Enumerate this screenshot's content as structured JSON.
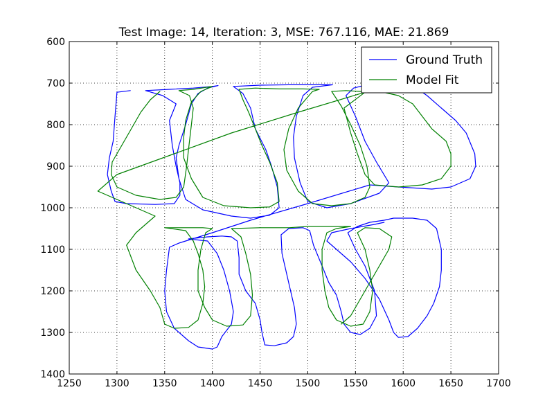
{
  "chart_data": {
    "type": "line",
    "title": "Test Image: 14, Iteration: 3, MSE: 767.116, MAE: 21.869",
    "xlabel": "",
    "ylabel": "",
    "xlim": [
      1250,
      1700
    ],
    "ylim": [
      600,
      1400
    ],
    "y_inverted": true,
    "grid": true,
    "legend_position": "top-right",
    "x_ticks": [
      1250,
      1300,
      1350,
      1400,
      1450,
      1500,
      1550,
      1600,
      1650,
      1700
    ],
    "y_ticks": [
      600,
      700,
      800,
      900,
      1000,
      1100,
      1200,
      1300,
      1400
    ],
    "series": [
      {
        "name": "Ground Truth",
        "color": "#0000ff",
        "points": [
          [
            1314,
            718
          ],
          [
            1300,
            722
          ],
          [
            1298,
            780
          ],
          [
            1296,
            840
          ],
          [
            1292,
            880
          ],
          [
            1290,
            920
          ],
          [
            1294,
            960
          ],
          [
            1298,
            985
          ],
          [
            1310,
            990
          ],
          [
            1340,
            992
          ],
          [
            1360,
            990
          ],
          [
            1366,
            970
          ],
          [
            1366,
            940
          ],
          [
            1362,
            900
          ],
          [
            1358,
            850
          ],
          [
            1355,
            790
          ],
          [
            1362,
            750
          ],
          [
            1348,
            730
          ],
          [
            1330,
            718
          ],
          [
            1355,
            715
          ],
          [
            1380,
            712
          ],
          [
            1400,
            708
          ],
          [
            1406,
            706
          ],
          [
            1395,
            712
          ],
          [
            1385,
            725
          ],
          [
            1378,
            750
          ],
          [
            1372,
            800
          ],
          [
            1365,
            850
          ],
          [
            1362,
            880
          ],
          [
            1365,
            930
          ],
          [
            1372,
            980
          ],
          [
            1390,
            1005
          ],
          [
            1420,
            1020
          ],
          [
            1440,
            1025
          ],
          [
            1460,
            1018
          ],
          [
            1470,
            1000
          ],
          [
            1468,
            950
          ],
          [
            1462,
            900
          ],
          [
            1456,
            860
          ],
          [
            1445,
            810
          ],
          [
            1440,
            760
          ],
          [
            1432,
            725
          ],
          [
            1422,
            708
          ],
          [
            1450,
            705
          ],
          [
            1480,
            704
          ],
          [
            1500,
            704
          ],
          [
            1516,
            704
          ],
          [
            1526,
            704
          ],
          [
            1505,
            710
          ],
          [
            1495,
            730
          ],
          [
            1488,
            780
          ],
          [
            1485,
            830
          ],
          [
            1486,
            880
          ],
          [
            1492,
            940
          ],
          [
            1500,
            985
          ],
          [
            1520,
            1000
          ],
          [
            1545,
            990
          ],
          [
            1575,
            965
          ],
          [
            1585,
            940
          ],
          [
            1572,
            890
          ],
          [
            1560,
            840
          ],
          [
            1550,
            780
          ],
          [
            1540,
            730
          ],
          [
            1548,
            712
          ],
          [
            1560,
            705
          ],
          [
            1578,
            702
          ],
          [
            1590,
            700
          ],
          [
            1605,
            698
          ],
          [
            1625,
            730
          ],
          [
            1640,
            760
          ],
          [
            1655,
            790
          ],
          [
            1666,
            820
          ],
          [
            1675,
            870
          ],
          [
            1676,
            900
          ],
          [
            1670,
            930
          ],
          [
            1650,
            950
          ],
          [
            1630,
            955
          ],
          [
            1595,
            950
          ],
          [
            1565,
            945
          ],
          [
            1500,
            990
          ],
          [
            1440,
            1030
          ],
          [
            1400,
            1060
          ],
          [
            1365,
            1085
          ],
          [
            1355,
            1095
          ],
          [
            1352,
            1150
          ],
          [
            1350,
            1200
          ],
          [
            1352,
            1250
          ],
          [
            1360,
            1290
          ],
          [
            1375,
            1320
          ],
          [
            1385,
            1335
          ],
          [
            1400,
            1340
          ],
          [
            1405,
            1335
          ],
          [
            1410,
            1310
          ],
          [
            1420,
            1280
          ],
          [
            1422,
            1250
          ],
          [
            1418,
            1200
          ],
          [
            1412,
            1150
          ],
          [
            1405,
            1110
          ],
          [
            1395,
            1080
          ],
          [
            1375,
            1075
          ],
          [
            1395,
            1070
          ],
          [
            1410,
            1068
          ],
          [
            1420,
            1070
          ],
          [
            1426,
            1080
          ],
          [
            1428,
            1120
          ],
          [
            1428,
            1160
          ],
          [
            1435,
            1200
          ],
          [
            1445,
            1230
          ],
          [
            1450,
            1270
          ],
          [
            1452,
            1300
          ],
          [
            1455,
            1330
          ],
          [
            1465,
            1332
          ],
          [
            1478,
            1325
          ],
          [
            1485,
            1310
          ],
          [
            1488,
            1280
          ],
          [
            1486,
            1240
          ],
          [
            1482,
            1200
          ],
          [
            1478,
            1160
          ],
          [
            1473,
            1110
          ],
          [
            1472,
            1065
          ],
          [
            1480,
            1050
          ],
          [
            1495,
            1048
          ],
          [
            1502,
            1055
          ],
          [
            1506,
            1090
          ],
          [
            1515,
            1140
          ],
          [
            1522,
            1180
          ],
          [
            1530,
            1210
          ],
          [
            1535,
            1250
          ],
          [
            1538,
            1280
          ],
          [
            1545,
            1300
          ],
          [
            1555,
            1305
          ],
          [
            1565,
            1290
          ],
          [
            1572,
            1260
          ],
          [
            1570,
            1200
          ],
          [
            1560,
            1140
          ],
          [
            1550,
            1100
          ],
          [
            1542,
            1060
          ],
          [
            1552,
            1045
          ],
          [
            1565,
            1035
          ],
          [
            1580,
            1030
          ],
          [
            1590,
            1025
          ],
          [
            1610,
            1025
          ],
          [
            1625,
            1030
          ],
          [
            1635,
            1050
          ],
          [
            1640,
            1100
          ],
          [
            1640,
            1150
          ],
          [
            1638,
            1190
          ],
          [
            1632,
            1230
          ],
          [
            1625,
            1260
          ],
          [
            1615,
            1290
          ],
          [
            1605,
            1310
          ],
          [
            1595,
            1312
          ],
          [
            1590,
            1300
          ],
          [
            1585,
            1270
          ],
          [
            1575,
            1220
          ],
          [
            1560,
            1170
          ],
          [
            1545,
            1130
          ],
          [
            1530,
            1100
          ],
          [
            1520,
            1080
          ],
          [
            1525,
            1060
          ],
          [
            1545,
            1050
          ],
          [
            1570,
            1040
          ],
          [
            1580,
            1035
          ]
        ]
      },
      {
        "name": "Model Fit",
        "color": "#008000",
        "points": [
          [
            1345,
            720
          ],
          [
            1335,
            740
          ],
          [
            1325,
            770
          ],
          [
            1315,
            810
          ],
          [
            1305,
            850
          ],
          [
            1295,
            890
          ],
          [
            1294,
            920
          ],
          [
            1300,
            950
          ],
          [
            1320,
            970
          ],
          [
            1345,
            980
          ],
          [
            1362,
            975
          ],
          [
            1370,
            950
          ],
          [
            1373,
            900
          ],
          [
            1375,
            860
          ],
          [
            1378,
            800
          ],
          [
            1380,
            760
          ],
          [
            1376,
            730
          ],
          [
            1365,
            718
          ],
          [
            1380,
            715
          ],
          [
            1400,
            708
          ],
          [
            1388,
            720
          ],
          [
            1378,
            745
          ],
          [
            1372,
            790
          ],
          [
            1370,
            830
          ],
          [
            1370,
            880
          ],
          [
            1378,
            930
          ],
          [
            1390,
            975
          ],
          [
            1412,
            995
          ],
          [
            1440,
            1000
          ],
          [
            1460,
            998
          ],
          [
            1470,
            985
          ],
          [
            1468,
            940
          ],
          [
            1460,
            890
          ],
          [
            1452,
            850
          ],
          [
            1445,
            810
          ],
          [
            1438,
            770
          ],
          [
            1432,
            740
          ],
          [
            1428,
            715
          ],
          [
            1445,
            712
          ],
          [
            1470,
            714
          ],
          [
            1495,
            714
          ],
          [
            1512,
            715
          ],
          [
            1505,
            720
          ],
          [
            1490,
            760
          ],
          [
            1480,
            810
          ],
          [
            1475,
            860
          ],
          [
            1478,
            910
          ],
          [
            1490,
            960
          ],
          [
            1505,
            990
          ],
          [
            1525,
            995
          ],
          [
            1545,
            990
          ],
          [
            1560,
            975
          ],
          [
            1565,
            950
          ],
          [
            1562,
            900
          ],
          [
            1555,
            850
          ],
          [
            1545,
            800
          ],
          [
            1535,
            755
          ],
          [
            1525,
            720
          ],
          [
            1540,
            718
          ],
          [
            1555,
            720
          ],
          [
            1575,
            720
          ],
          [
            1595,
            730
          ],
          [
            1610,
            750
          ],
          [
            1620,
            780
          ],
          [
            1630,
            810
          ],
          [
            1645,
            840
          ],
          [
            1650,
            870
          ],
          [
            1650,
            900
          ],
          [
            1640,
            930
          ],
          [
            1620,
            945
          ],
          [
            1595,
            950
          ],
          [
            1570,
            945
          ],
          [
            1560,
            920
          ],
          [
            1552,
            870
          ],
          [
            1545,
            820
          ],
          [
            1538,
            760
          ],
          [
            1560,
            722
          ],
          [
            1490,
            770
          ],
          [
            1420,
            820
          ],
          [
            1360,
            870
          ],
          [
            1300,
            920
          ],
          [
            1280,
            960
          ],
          [
            1310,
            990
          ],
          [
            1340,
            1020
          ],
          [
            1320,
            1060
          ],
          [
            1310,
            1090
          ],
          [
            1320,
            1150
          ],
          [
            1335,
            1200
          ],
          [
            1345,
            1240
          ],
          [
            1350,
            1280
          ],
          [
            1360,
            1290
          ],
          [
            1375,
            1288
          ],
          [
            1385,
            1270
          ],
          [
            1390,
            1230
          ],
          [
            1392,
            1190
          ],
          [
            1390,
            1150
          ],
          [
            1385,
            1110
          ],
          [
            1380,
            1080
          ],
          [
            1372,
            1055
          ],
          [
            1350,
            1048
          ],
          [
            1390,
            1048
          ],
          [
            1400,
            1050
          ],
          [
            1393,
            1060
          ],
          [
            1388,
            1100
          ],
          [
            1385,
            1150
          ],
          [
            1385,
            1200
          ],
          [
            1392,
            1240
          ],
          [
            1400,
            1270
          ],
          [
            1415,
            1285
          ],
          [
            1432,
            1282
          ],
          [
            1440,
            1260
          ],
          [
            1442,
            1210
          ],
          [
            1440,
            1160
          ],
          [
            1435,
            1110
          ],
          [
            1430,
            1070
          ],
          [
            1420,
            1050
          ],
          [
            1450,
            1048
          ],
          [
            1480,
            1048
          ],
          [
            1500,
            1045
          ],
          [
            1520,
            1045
          ],
          [
            1545,
            1045
          ],
          [
            1530,
            1050
          ],
          [
            1520,
            1060
          ],
          [
            1515,
            1100
          ],
          [
            1515,
            1150
          ],
          [
            1518,
            1200
          ],
          [
            1522,
            1240
          ],
          [
            1530,
            1270
          ],
          [
            1545,
            1285
          ],
          [
            1558,
            1280
          ],
          [
            1565,
            1250
          ],
          [
            1568,
            1200
          ],
          [
            1565,
            1150
          ],
          [
            1560,
            1100
          ],
          [
            1552,
            1060
          ],
          [
            1560,
            1048
          ],
          [
            1575,
            1050
          ],
          [
            1588,
            1070
          ],
          [
            1585,
            1100
          ],
          [
            1575,
            1140
          ],
          [
            1565,
            1180
          ],
          [
            1555,
            1220
          ],
          [
            1545,
            1260
          ],
          [
            1535,
            1280
          ]
        ]
      }
    ]
  }
}
